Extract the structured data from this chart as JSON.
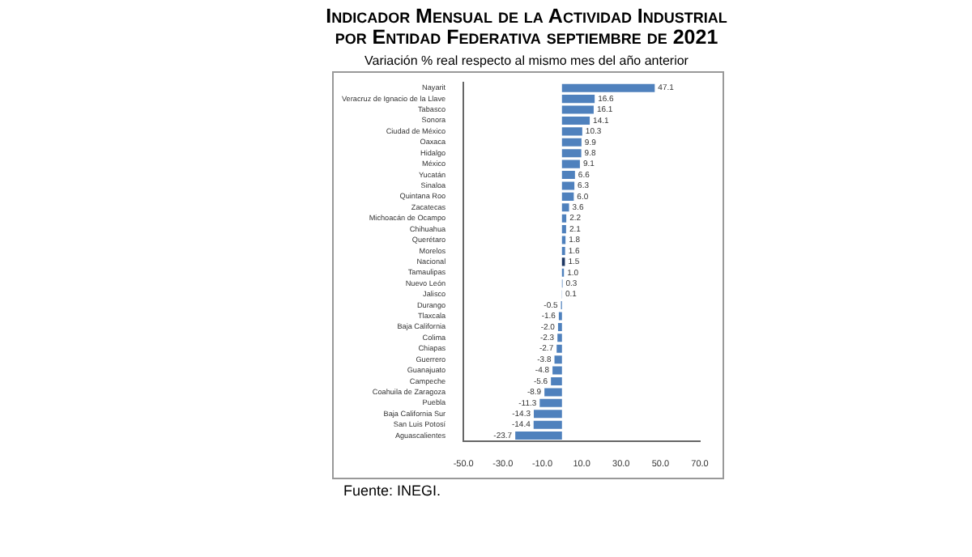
{
  "chart_data": {
    "type": "bar",
    "orientation": "horizontal",
    "title": "Indicador Mensual de la Actividad Industrial por Entidad Federativa septiembre de 2021",
    "subtitle": "Variación % real respecto al mismo mes del año anterior",
    "categories": [
      "Nayarit",
      "Veracruz de Ignacio de la Llave",
      "Tabasco",
      "Sonora",
      "Ciudad de México",
      "Oaxaca",
      "Hidalgo",
      "México",
      "Yucatán",
      "Sinaloa",
      "Quintana Roo",
      "Zacatecas",
      "Michoacán de Ocampo",
      "Chihuahua",
      "Querétaro",
      "Morelos",
      "Nacional",
      "Tamaulipas",
      "Nuevo León",
      "Jalisco",
      "Durango",
      "Tlaxcala",
      "Baja California",
      "Colima",
      "Chiapas",
      "Guerrero",
      "Guanajuato",
      "Campeche",
      "Coahuila de Zaragoza",
      "Puebla",
      "Baja California Sur",
      "San Luis Potosí",
      "Aguascalientes"
    ],
    "values": [
      47.1,
      16.6,
      16.1,
      14.1,
      10.3,
      9.9,
      9.8,
      9.1,
      6.6,
      6.3,
      6.0,
      3.6,
      2.2,
      2.1,
      1.8,
      1.6,
      1.5,
      1.0,
      0.3,
      0.1,
      -0.5,
      -1.6,
      -2.0,
      -2.3,
      -2.7,
      -3.8,
      -4.8,
      -5.6,
      -8.9,
      -11.3,
      -14.3,
      -14.4,
      -23.7
    ],
    "value_labels": [
      "47.1",
      "16.6",
      "16.1",
      "14.1",
      "10.3",
      "9.9",
      "9.8",
      "9.1",
      "6.6",
      "6.3",
      "6.0",
      "3.6",
      "2.2",
      "2.1",
      "1.8",
      "1.6",
      "1.5",
      "1.0",
      "0.3",
      "0.1",
      "-0.5",
      "-1.6",
      "-2.0",
      "-2.3",
      "-2.7",
      "-3.8",
      "-4.8",
      "-5.6",
      "-8.9",
      "-11.3",
      "-14.3",
      "-14.4",
      "-23.7"
    ],
    "colors": [
      "#4f81bd",
      "#4f81bd",
      "#4f81bd",
      "#4f81bd",
      "#4f81bd",
      "#4f81bd",
      "#4f81bd",
      "#4f81bd",
      "#4f81bd",
      "#4f81bd",
      "#4f81bd",
      "#4f81bd",
      "#4f81bd",
      "#4f81bd",
      "#4f81bd",
      "#4f81bd",
      "#1f3864",
      "#4f81bd",
      "#4f81bd",
      "#4f81bd",
      "#4f81bd",
      "#4f81bd",
      "#4f81bd",
      "#4f81bd",
      "#4f81bd",
      "#4f81bd",
      "#4f81bd",
      "#4f81bd",
      "#4f81bd",
      "#4f81bd",
      "#4f81bd",
      "#4f81bd",
      "#4f81bd"
    ],
    "xlim": [
      -50,
      70
    ],
    "xticks": [
      {
        "value": -50,
        "label": "-50.0"
      },
      {
        "value": -30,
        "label": "-30.0"
      },
      {
        "value": -10,
        "label": "-10.0"
      },
      {
        "value": 10,
        "label": "10.0"
      },
      {
        "value": 30,
        "label": "30.0"
      },
      {
        "value": 50,
        "label": "50.0"
      },
      {
        "value": 70,
        "label": "70.0"
      }
    ],
    "grid": false,
    "legend": false,
    "annotations": [
      "Fuente: INEGI."
    ]
  }
}
